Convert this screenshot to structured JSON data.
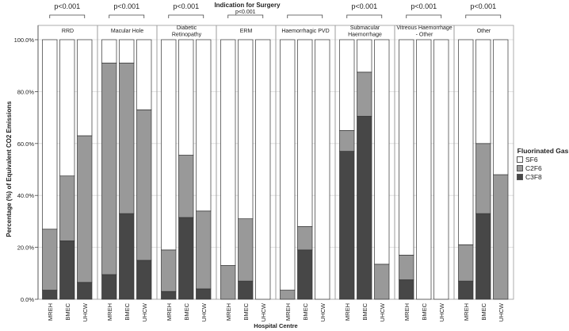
{
  "chart_data": {
    "type": "bar",
    "stacked": true,
    "title": "Indication for Surgery",
    "xlabel": "Hospital Centre",
    "ylabel": "Percentage (%) of Equivalent CO2 Emissions",
    "ylim": [
      0,
      100
    ],
    "yticks": [
      {
        "value": 0,
        "label": "0.0%"
      },
      {
        "value": 20,
        "label": "20.0%"
      },
      {
        "value": 40,
        "label": "40.0%"
      },
      {
        "value": 60,
        "label": "60.0%"
      },
      {
        "value": 80,
        "label": "80.0%"
      },
      {
        "value": 100,
        "label": "100.0%"
      }
    ],
    "hospitals": [
      "MREH",
      "BMEC",
      "UHCW"
    ],
    "legend": {
      "title": "Fluorinated Gas",
      "items": [
        {
          "name": "SF6",
          "color": "#ffffff"
        },
        {
          "name": "C2F6",
          "color": "#999999"
        },
        {
          "name": "C3F8",
          "color": "#474747"
        }
      ]
    },
    "panels": [
      {
        "name": "RRD",
        "pvalue": "p<0.001",
        "bars": [
          {
            "C3F8": 3.5,
            "C2F6": 23.5,
            "SF6": 73.0
          },
          {
            "C3F8": 22.5,
            "C2F6": 25.0,
            "SF6": 52.5
          },
          {
            "C3F8": 6.5,
            "C2F6": 56.5,
            "SF6": 37.0
          }
        ]
      },
      {
        "name": "Macular Hole",
        "pvalue": "p<0.001",
        "bars": [
          {
            "C3F8": 9.5,
            "C2F6": 81.5,
            "SF6": 9.0
          },
          {
            "C3F8": 33.0,
            "C2F6": 58.0,
            "SF6": 9.0
          },
          {
            "C3F8": 15.0,
            "C2F6": 58.0,
            "SF6": 27.0
          }
        ]
      },
      {
        "name": "Diabetic Retinopathy",
        "pvalue": "p<0.001",
        "bars": [
          {
            "C3F8": 3.0,
            "C2F6": 16.0,
            "SF6": 81.0
          },
          {
            "C3F8": 31.5,
            "C2F6": 24.0,
            "SF6": 44.5
          },
          {
            "C3F8": 4.0,
            "C2F6": 30.0,
            "SF6": 66.0
          }
        ]
      },
      {
        "name": "ERM",
        "pvalue": "p<0.001",
        "bars": [
          {
            "C3F8": 0.0,
            "C2F6": 13.0,
            "SF6": 87.0
          },
          {
            "C3F8": 7.0,
            "C2F6": 24.0,
            "SF6": 69.0
          },
          {
            "C3F8": 0.0,
            "C2F6": 0.0,
            "SF6": 100.0
          }
        ]
      },
      {
        "name": "Haemorrhagic PVD",
        "pvalue": "",
        "bars": [
          {
            "C3F8": 0.0,
            "C2F6": 3.5,
            "SF6": 96.5
          },
          {
            "C3F8": 19.0,
            "C2F6": 9.0,
            "SF6": 72.0
          },
          {
            "C3F8": 0.0,
            "C2F6": 0.0,
            "SF6": 100.0
          }
        ]
      },
      {
        "name": "Submacular Haemorrhage",
        "pvalue": "p<0.001",
        "bars": [
          {
            "C3F8": 57.0,
            "C2F6": 8.0,
            "SF6": 35.0
          },
          {
            "C3F8": 70.5,
            "C2F6": 17.0,
            "SF6": 12.5
          },
          {
            "C3F8": 0.0,
            "C2F6": 13.5,
            "SF6": 86.5
          }
        ]
      },
      {
        "name": "Vitreous Haemorrhage - Other",
        "pvalue": "p<0.001",
        "bars": [
          {
            "C3F8": 7.5,
            "C2F6": 9.5,
            "SF6": 83.0
          },
          {
            "C3F8": 0.0,
            "C2F6": 0.0,
            "SF6": 100.0
          },
          {
            "C3F8": 0.0,
            "C2F6": 0.0,
            "SF6": 100.0
          }
        ]
      },
      {
        "name": "Other",
        "pvalue": "p<0.001",
        "bars": [
          {
            "C3F8": 7.0,
            "C2F6": 14.0,
            "SF6": 79.0
          },
          {
            "C3F8": 33.0,
            "C2F6": 27.0,
            "SF6": 40.0
          },
          {
            "C3F8": 0.0,
            "C2F6": 48.0,
            "SF6": 52.0
          }
        ]
      }
    ]
  }
}
